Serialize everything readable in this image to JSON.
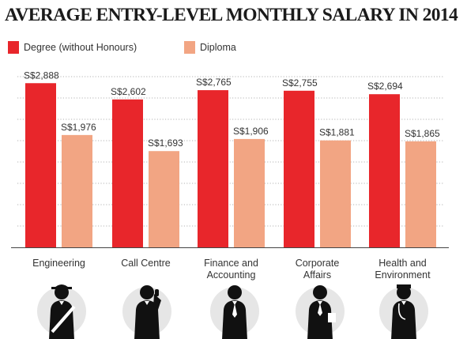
{
  "title": "AVERAGE ENTRY-LEVEL MONTHLY SALARY IN 2014",
  "legend": [
    {
      "label": "Degree (without Honours)",
      "color": "#e8262b"
    },
    {
      "label": "Diploma",
      "color": "#f2a583"
    }
  ],
  "chart_data": {
    "type": "bar",
    "title": "AVERAGE ENTRY-LEVEL MONTHLY SALARY IN 2014",
    "categories": [
      [
        "Engineering"
      ],
      [
        "Call Centre"
      ],
      [
        "Finance and",
        "Accounting"
      ],
      [
        "Corporate",
        "Affairs"
      ],
      [
        "Health and",
        "Environment"
      ]
    ],
    "series": [
      {
        "name": "Degree (without Honours)",
        "color": "#e8262b",
        "values": [
          2888,
          2602,
          2765,
          2755,
          2694
        ],
        "labels": [
          "S$2,888",
          "S$2,602",
          "S$2,765",
          "S$2,755",
          "S$2,694"
        ]
      },
      {
        "name": "Diploma",
        "color": "#f2a583",
        "values": [
          1976,
          1693,
          1906,
          1881,
          1865
        ],
        "labels": [
          "S$1,976",
          "S$1,693",
          "S$1,906",
          "S$1,881",
          "S$1,865"
        ]
      }
    ],
    "ylim": [
      0,
      3100
    ],
    "grid": true,
    "legend_position": "top-left",
    "icons": [
      "engineer-icon",
      "call-centre-worker-icon",
      "accountant-icon",
      "corporate-worker-icon",
      "health-worker-icon"
    ]
  }
}
